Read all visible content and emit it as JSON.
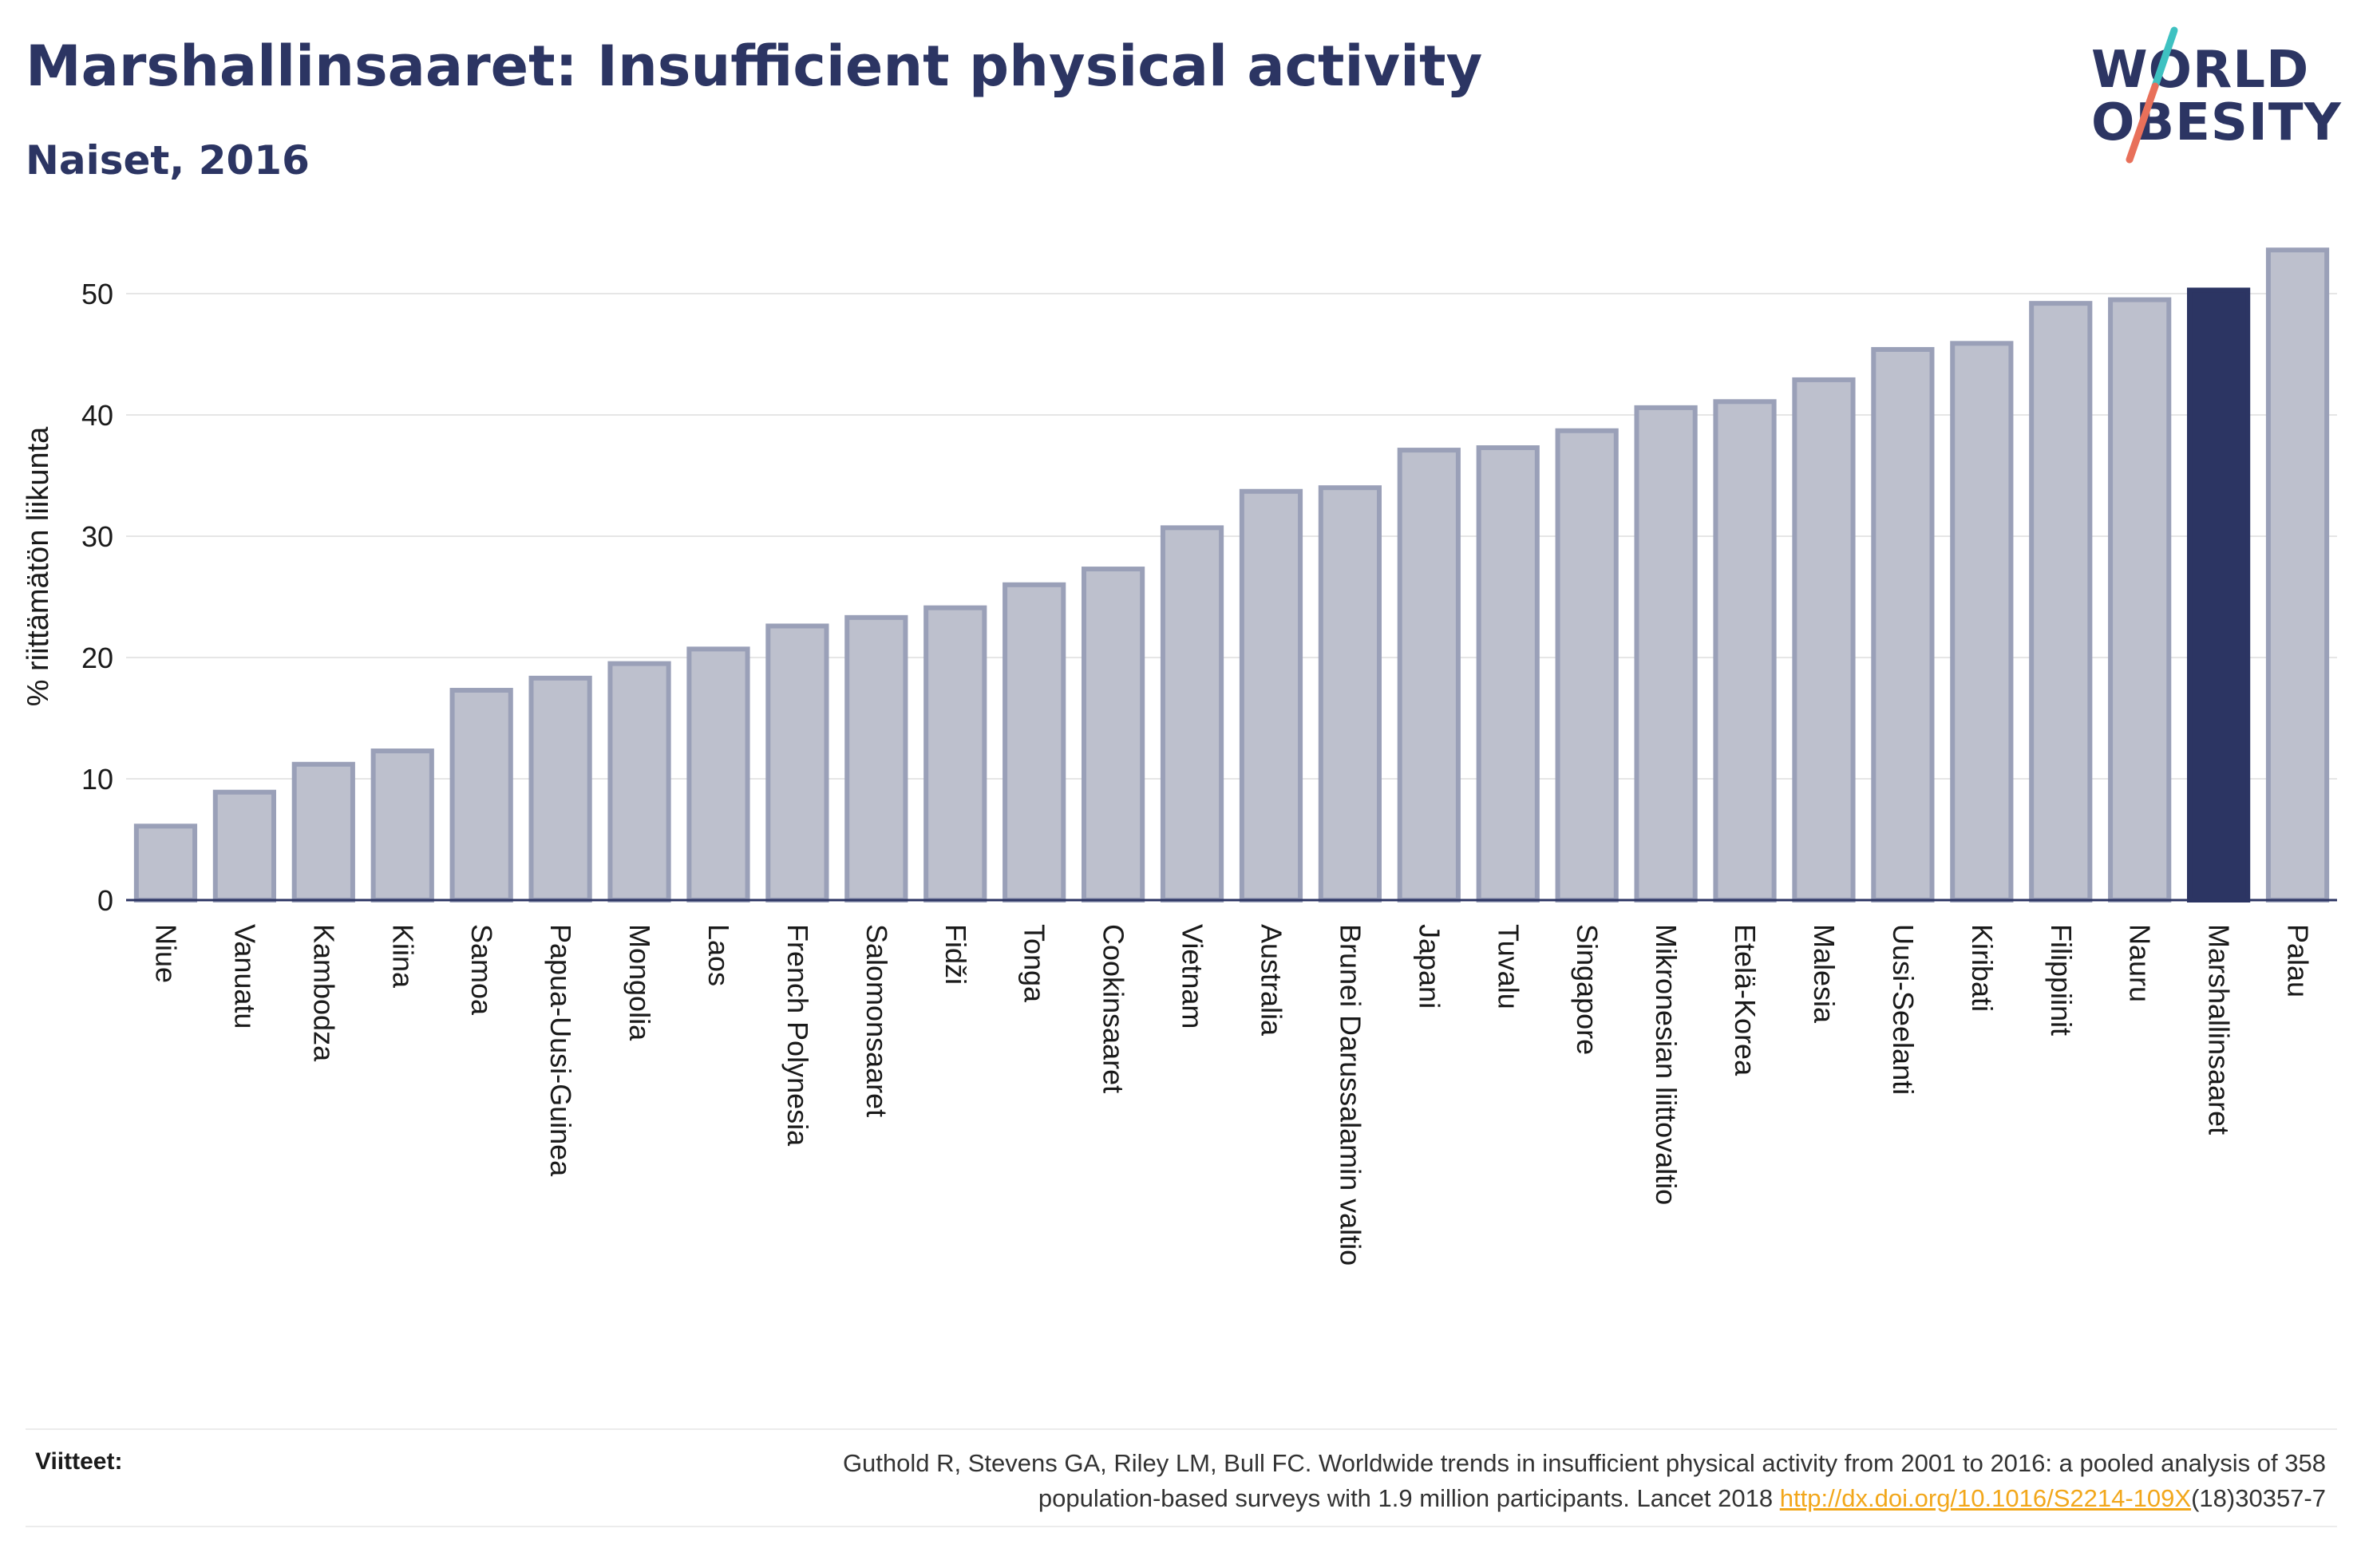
{
  "header": {
    "title": "Marshallinsaaret: Insufficient physical activity",
    "subtitle": "Naiset, 2016"
  },
  "logo": {
    "line1": "WORLD",
    "line2": "OBESITY",
    "colors": {
      "text": "#2c3563",
      "slash_top": "#3ec1c1",
      "slash_bottom": "#e8705a"
    }
  },
  "chart_data": {
    "type": "bar",
    "ylabel": "% riittämätön liikunta",
    "xlabel": "",
    "ylim": [
      0,
      55
    ],
    "yticks": [
      0,
      10,
      20,
      30,
      40,
      50
    ],
    "grid": true,
    "highlight": "Marshallinsaaret",
    "colors": {
      "bar_fill": "#bdc0cd",
      "bar_stroke": "#9aa0b8",
      "highlight_fill": "#2c3563",
      "grid": "#e6e6e6",
      "axis": "#2c3563"
    },
    "categories": [
      "Niue",
      "Vanuatu",
      "Kambodza",
      "Kiina",
      "Samoa",
      "Papua-Uusi-Guinea",
      "Mongolia",
      "Laos",
      "French Polynesia",
      "Salomonsaaret",
      "Fidži",
      "Tonga",
      "Cookinsaaret",
      "Vietnam",
      "Australia",
      "Brunei Darussalamin valtio",
      "Japani",
      "Tuvalu",
      "Singapore",
      "Mikronesian liittovaltio",
      "Etelä-Korea",
      "Malesia",
      "Uusi-Seelanti",
      "Kiribati",
      "Filippiinit",
      "Nauru",
      "Marshallinsaaret",
      "Palau"
    ],
    "values": [
      6.1,
      8.9,
      11.2,
      12.3,
      17.3,
      18.3,
      19.5,
      20.7,
      22.6,
      23.3,
      24.1,
      26.0,
      27.3,
      30.7,
      33.7,
      34.0,
      37.1,
      37.3,
      38.7,
      40.6,
      41.1,
      42.9,
      45.4,
      45.9,
      49.2,
      49.5,
      50.3,
      53.6
    ]
  },
  "references": {
    "label": "Viitteet:",
    "text_line1": "Guthold R, Stevens GA, Riley LM, Bull FC. Worldwide trends in insufficient physical activity from 2001 to 2016: a pooled analysis of 358",
    "text_line2": "population-based surveys with 1.9 million participants. Lancet 2018",
    "link_text": "http://dx.doi.org/10.1016/S2214-109X",
    "link_suffix": "(18)30357-7"
  }
}
